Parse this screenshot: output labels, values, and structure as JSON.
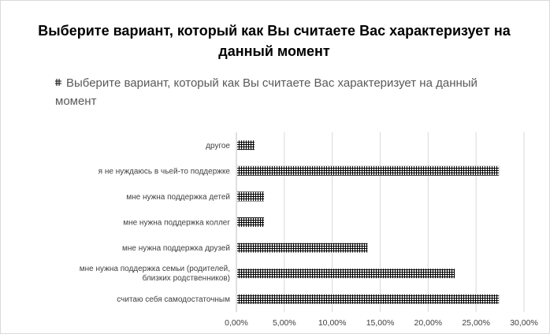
{
  "chart_data": {
    "type": "bar",
    "orientation": "horizontal",
    "title": "Выберите вариант, который как Вы считаете Вас характеризует на данный момент",
    "categories": [
      "другое",
      "я не нуждаюсь в чьей-то поддержке",
      "мне нужна поддержка детей",
      "мне нужна поддержка коллег",
      "мне нужна поддержка друзей",
      "мне нужна поддержка семьи (родителей, близких родственников)",
      "считаю себя самодостаточным"
    ],
    "series": [
      {
        "name": "Выберите вариант, который как Вы считаете Вас характеризует на данный момент",
        "values": [
          1.8,
          27.3,
          2.8,
          2.8,
          13.6,
          22.7,
          27.3
        ]
      }
    ],
    "xlim": [
      0,
      30
    ],
    "xticks": [
      0,
      5,
      10,
      15,
      20,
      25,
      30
    ],
    "xtick_labels": [
      "0,00%",
      "5,00%",
      "10,00%",
      "15,00%",
      "20,00%",
      "25,00%",
      "30,00%"
    ],
    "value_unit": "%",
    "bar_pattern": "hatched-grid",
    "grid": "vertical",
    "legend_position": "top",
    "colors": {
      "bar": "#000000",
      "grid": "#d9d9d9",
      "axis": "#bfbfbf",
      "text": "#404040"
    }
  }
}
